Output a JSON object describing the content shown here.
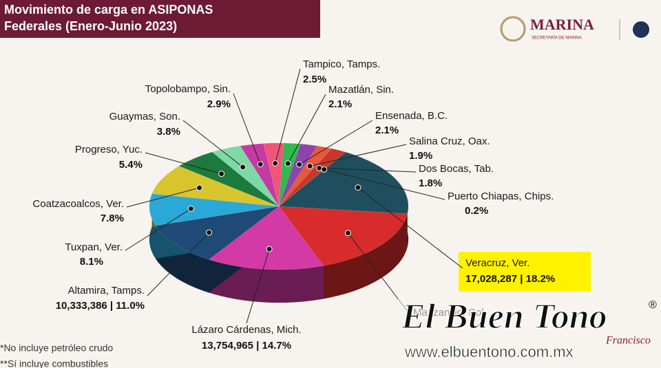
{
  "header": {
    "title_line1": "Movimiento de carga en ASIPONAS",
    "title_line2": "Federales (Enero-Junio 2023)",
    "logo": "MARINA",
    "logo_sub": "SECRETARÍA DE MARINA"
  },
  "chart_data": {
    "type": "pie",
    "categories": [
      "Tampico, Tamps.",
      "Mazatlán, Sin.",
      "Ensenada, B.C.",
      "Salina Cruz, Oax.",
      "Dos Bocas, Tab.",
      "Puerto Chiapas, Chips.",
      "Veracruz, Ver.",
      "Manzanillo, Col.",
      "Lázaro Cárdenas, Mich.",
      "Altamira, Tamps.",
      "Tuxpan, Ver.",
      "Coatzacoalcos, Ver.",
      "Progreso, Yuc.",
      "Guaymas, Son.",
      "Topolobampo, Sin."
    ],
    "values": [
      2.5,
      2.1,
      2.1,
      1.9,
      1.8,
      0.2,
      18.2,
      17.5,
      14.7,
      11.0,
      8.1,
      7.8,
      5.4,
      3.8,
      2.9
    ],
    "value_labels": [
      "2.5%",
      "2.1%",
      "2.1%",
      "1.9%",
      "1.8%",
      "0.2%",
      "17,028,287 | 18.2%",
      null,
      "13,754,965 | 14.7%",
      "10,333,386 | 11.0%",
      "8.1%",
      "7.8%",
      "5.4%",
      "3.8%",
      "2.9%"
    ],
    "colors": [
      "#f2557a",
      "#2fb94f",
      "#8e44ad",
      "#e8593a",
      "#c8362c",
      "#a33128",
      "#1f4f5e",
      "#d82b2b",
      "#d43aa6",
      "#1f4a78",
      "#2aa8d8",
      "#d8c52e",
      "#1c7a3c",
      "#7fd8a8",
      "#c63aa4"
    ]
  },
  "footnotes": [
    "*No incluye petróleo crudo",
    "**Sí incluye combustibles"
  ],
  "watermark": {
    "brand": "El Buen Tono",
    "registered": "®",
    "url": "www.elbuentono.com.mx",
    "signature": "Francisco"
  }
}
